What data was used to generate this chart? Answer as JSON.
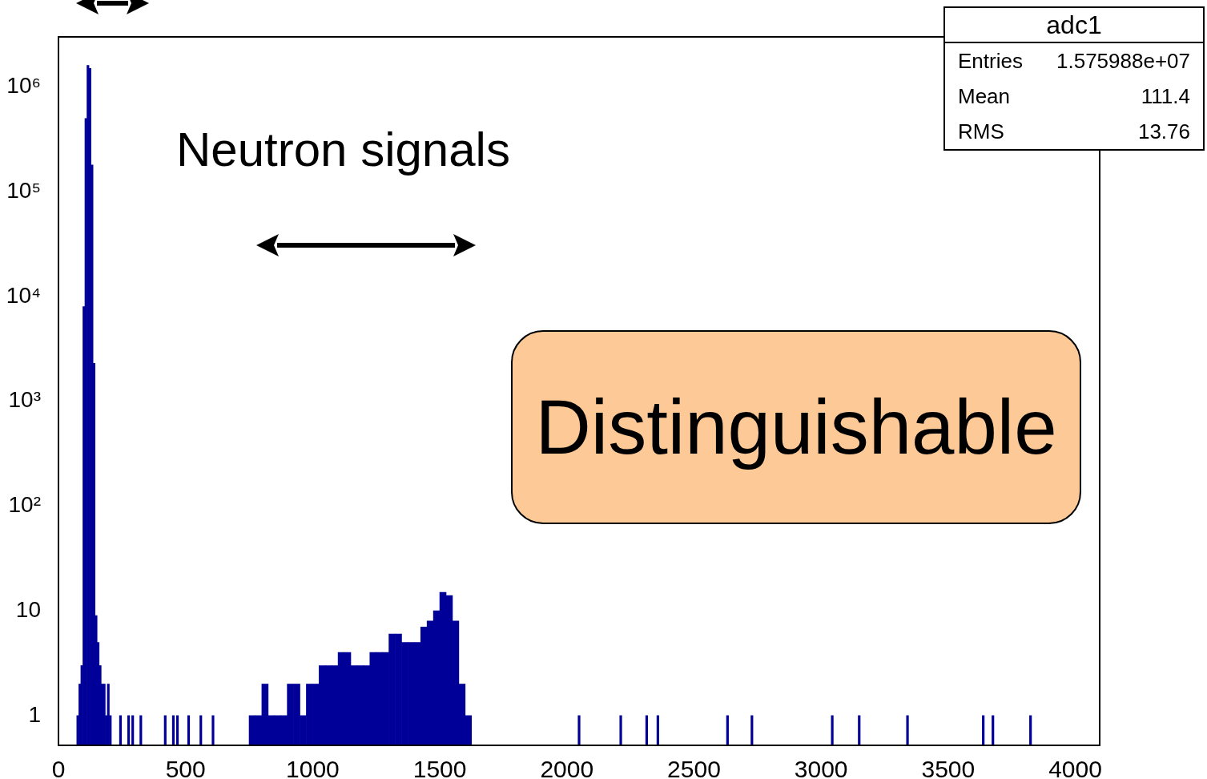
{
  "chart_data": {
    "type": "histogram",
    "bins": [
      72,
      80,
      88,
      96,
      104,
      112,
      120,
      128,
      136,
      144,
      152,
      160,
      168,
      176,
      184,
      192,
      200,
      208,
      240,
      248,
      272,
      280,
      288,
      296,
      320,
      328,
      416,
      424,
      448,
      456,
      464,
      472,
      508,
      516,
      556,
      564,
      604,
      612,
      750,
      775,
      800,
      825,
      850,
      875,
      900,
      925,
      950,
      975,
      1000,
      1025,
      1050,
      1075,
      1100,
      1125,
      1150,
      1175,
      1200,
      1225,
      1250,
      1275,
      1300,
      1325,
      1350,
      1375,
      1400,
      1425,
      1450,
      1475,
      1500,
      1525,
      1550,
      1575,
      1600,
      1625,
      2044,
      2052,
      2208,
      2216,
      2310,
      2318,
      2354,
      2362,
      2628,
      2636,
      2724,
      2732,
      3040,
      3048,
      3146,
      3154,
      3336,
      3344,
      3634,
      3642,
      3672,
      3680,
      3820,
      3828
    ],
    "values": [
      1,
      2,
      3,
      8000,
      500000,
      1600000,
      1500000,
      180000,
      2300,
      9,
      5,
      3,
      2,
      2,
      1,
      2,
      1,
      null,
      1,
      null,
      1,
      null,
      1,
      null,
      1,
      null,
      1,
      null,
      1,
      null,
      1,
      null,
      1,
      null,
      1,
      null,
      1,
      null,
      1,
      1,
      2,
      1,
      1,
      1,
      2,
      2,
      1,
      2,
      2,
      3,
      3,
      3,
      4,
      4,
      3,
      3,
      3,
      4,
      4,
      4,
      6,
      6,
      5,
      5,
      5,
      7,
      8,
      10,
      15,
      14,
      8,
      2,
      1,
      null,
      1,
      null,
      1,
      null,
      1,
      null,
      1,
      null,
      1,
      null,
      1,
      null,
      1,
      null,
      1,
      null,
      1,
      null,
      1,
      null,
      1,
      null,
      1
    ],
    "color": "#000099",
    "log": "y",
    "xlim": [
      0,
      4096
    ],
    "xticks": [
      0,
      500,
      1000,
      1500,
      2000,
      2500,
      3000,
      3500,
      4000
    ],
    "ylim": [
      0.52,
      3000000
    ],
    "yticks": [
      {
        "value": 1,
        "label": "1"
      },
      {
        "value": 10,
        "label": "10"
      },
      {
        "value": 100,
        "label": "10²"
      },
      {
        "value": 1000,
        "label": "10³"
      },
      {
        "value": 10000,
        "label": "10⁴"
      },
      {
        "value": 100000,
        "label": "10⁵"
      },
      {
        "value": 1000000,
        "label": "10⁶"
      }
    ],
    "grid": false,
    "legend": false,
    "annotations": [
      "Neutron signals",
      "Distinguishable",
      "adc1",
      "Entries",
      "1.575988e+07",
      "Mean",
      "111.4",
      "RMS",
      "13.76"
    ]
  }
}
